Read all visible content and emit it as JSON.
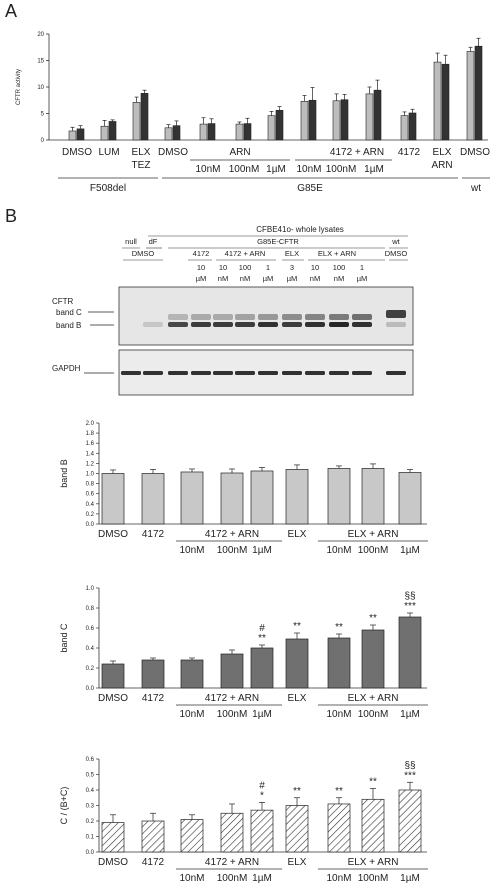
{
  "panel_a": {
    "label": "A",
    "chart_data": {
      "type": "bar",
      "ylabel": "CFTR activity",
      "ylim": [
        0,
        20
      ],
      "yticks": [
        "0",
        "5",
        "10",
        "15",
        "20"
      ],
      "grid": false,
      "series": [
        {
          "name": "",
          "color": "#bdbdbd",
          "values": [
            1.7,
            2.6,
            7.1,
            2.3,
            3.0,
            3.0,
            4.6,
            7.3,
            7.4,
            8.7,
            4.6,
            14.7,
            16.7
          ]
        },
        {
          "name": "",
          "color": "#333333",
          "values": [
            2.1,
            3.5,
            8.8,
            2.7,
            3.1,
            3.1,
            5.6,
            7.5,
            7.6,
            9.4,
            5.1,
            14.3,
            17.7
          ]
        }
      ],
      "errors": [
        [
          0.7,
          1.1,
          1.0,
          0.6,
          1.2,
          0.4,
          0.8,
          1.1,
          1.3,
          1.3,
          0.7,
          1.7,
          0.8
        ],
        [
          0.6,
          0.3,
          0.6,
          0.9,
          0.9,
          1.0,
          0.7,
          2.4,
          1.0,
          1.9,
          0.7,
          1.7,
          1.5
        ]
      ]
    },
    "row1": [
      "DMSO",
      "LUM",
      "ELX",
      "DMSO",
      "ARN",
      "4172 + ARN",
      "4172",
      "ELX",
      "DMSO"
    ],
    "row1b": [
      "TEZ",
      "ARN"
    ],
    "row2": [
      "10nM",
      "100nM",
      "1µM",
      "10nM",
      "100nM",
      "1µM"
    ],
    "groups": [
      "F508del",
      "G85E",
      "wt"
    ]
  },
  "panel_b": {
    "label": "B",
    "blot": {
      "title": "CFBE41o- whole lysates",
      "header1": [
        "null",
        "dF",
        "G85E-CFTR",
        "wt"
      ],
      "header2": [
        "DMSO",
        "4172",
        "4172 + ARN",
        "ELX",
        "ELX + ARN",
        "DMSO"
      ],
      "conc1": [
        "10",
        "10",
        "100",
        "1",
        "3",
        "10",
        "100",
        "1"
      ],
      "conc2": [
        "µM",
        "nM",
        "nM",
        "µM",
        "µM",
        "nM",
        "nM",
        "µM"
      ],
      "cftr_label": "CFTR",
      "band_c": "band C",
      "band_b": "band B",
      "gapdh": "GAPDH"
    },
    "xlabels": {
      "row1": [
        "DMSO",
        "4172",
        "4172 + ARN",
        "ELX",
        "ELX + ARN"
      ],
      "row2": [
        "10nM",
        "100nM",
        "1µM",
        "10nM",
        "100nM",
        "1µM"
      ]
    },
    "chart_b": {
      "type": "bar",
      "ylabel": "band B",
      "ylim": [
        0,
        2.0
      ],
      "yticks": [
        "0.0",
        "0.2",
        "0.4",
        "0.6",
        "0.8",
        "1.0",
        "1.2",
        "1.4",
        "1.6",
        "1.8",
        "2.0"
      ],
      "categories": [
        "DMSO",
        "4172",
        "10nM",
        "100nM",
        "1µM",
        "ELX",
        "10nM",
        "100nM",
        "1µM"
      ],
      "values": [
        1.0,
        1.0,
        1.03,
        1.01,
        1.05,
        1.08,
        1.1,
        1.1,
        1.02
      ],
      "errors": [
        0.07,
        0.08,
        0.06,
        0.08,
        0.07,
        0.09,
        0.05,
        0.09,
        0.06
      ],
      "color": "#c8c8c8"
    },
    "chart_c": {
      "type": "bar",
      "ylabel": "band C",
      "ylim": [
        0,
        1.0
      ],
      "yticks": [
        "0.0",
        "0.2",
        "0.4",
        "0.6",
        "0.8",
        "1.0"
      ],
      "categories": [
        "DMSO",
        "4172",
        "10nM",
        "100nM",
        "1µM",
        "ELX",
        "10nM",
        "100nM",
        "1µM"
      ],
      "values": [
        0.24,
        0.28,
        0.28,
        0.34,
        0.4,
        0.49,
        0.5,
        0.58,
        0.71
      ],
      "errors": [
        0.03,
        0.02,
        0.02,
        0.04,
        0.03,
        0.06,
        0.04,
        0.05,
        0.04
      ],
      "annotations": [
        "",
        "",
        "",
        "",
        "**",
        "**",
        "**",
        "**",
        "***"
      ],
      "annotations2": [
        "",
        "",
        "",
        "",
        "#",
        "",
        "",
        "",
        "§§"
      ],
      "colors": [
        "#707070",
        "#707070",
        "#707070",
        "#707070",
        "#707070",
        "#707070",
        "#707070",
        "#707070",
        "#707070"
      ]
    },
    "chart_ratio": {
      "type": "bar",
      "ylabel": "C / (B+C)",
      "ylim": [
        0,
        0.6
      ],
      "yticks": [
        "0.0",
        "0.1",
        "0.2",
        "0.3",
        "0.4",
        "0.5",
        "0.6"
      ],
      "categories": [
        "DMSO",
        "4172",
        "10nM",
        "100nM",
        "1µM",
        "ELX",
        "10nM",
        "100nM",
        "1µM"
      ],
      "values": [
        0.19,
        0.2,
        0.21,
        0.25,
        0.27,
        0.3,
        0.31,
        0.34,
        0.4
      ],
      "errors": [
        0.05,
        0.05,
        0.03,
        0.06,
        0.05,
        0.05,
        0.04,
        0.07,
        0.05
      ],
      "annotations": [
        "",
        "",
        "",
        "",
        "*",
        "**",
        "**",
        "**",
        "***"
      ],
      "annotations2": [
        "",
        "",
        "",
        "",
        "#",
        "",
        "",
        "",
        "§§"
      ]
    }
  }
}
